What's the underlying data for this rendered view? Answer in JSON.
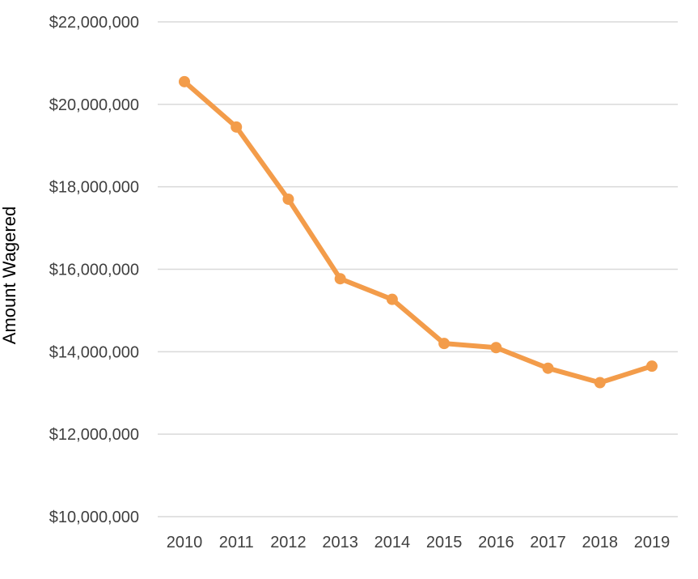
{
  "chart_data": {
    "type": "line",
    "title": "",
    "xlabel": "",
    "ylabel": "Amount Wagered",
    "x": [
      "2010",
      "2011",
      "2012",
      "2013",
      "2014",
      "2015",
      "2016",
      "2017",
      "2018",
      "2019"
    ],
    "series": [
      {
        "values": [
          20550000,
          19450000,
          17700000,
          15770000,
          15270000,
          14200000,
          14100000,
          13600000,
          13250000,
          13650000
        ],
        "color": "#f39c4a"
      }
    ],
    "ylim": [
      10000000,
      22000000
    ],
    "yticks": [
      "$10,000,000",
      "$12,000,000",
      "$14,000,000",
      "$16,000,000",
      "$18,000,000",
      "$20,000,000",
      "$22,000,000"
    ],
    "ytick_values": [
      10000000,
      12000000,
      14000000,
      16000000,
      18000000,
      20000000,
      22000000
    ],
    "grid": true,
    "legend": "none",
    "gridline_color": "#d9d9d9"
  }
}
